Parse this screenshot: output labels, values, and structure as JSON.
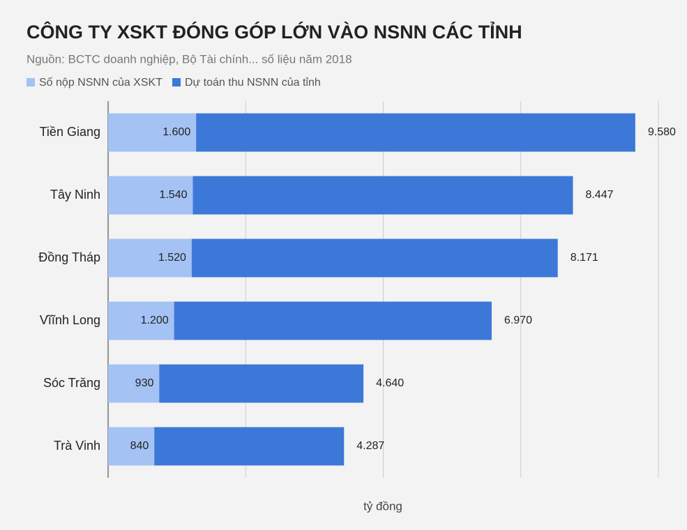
{
  "chart_data": {
    "type": "bar_overlap_horizontal",
    "title": "CÔNG TY XSKT ĐÓNG GÓP LỚN VÀO NSNN CÁC TỈNH",
    "subtitle": "Nguồn: BCTC doanh nghiệp, Bộ Tài chính... số liệu năm 2018",
    "x_label": "tỷ đồng",
    "categories": [
      "Tiền Giang",
      "Tây Ninh",
      "Đồng Tháp",
      "Vĩĩnh Long",
      "Sóc Trăng",
      "Trà Vinh"
    ],
    "series": [
      {
        "name": "Số nộp NSNN của XSKT",
        "color": "#a4c2f4",
        "values": [
          1600,
          1540,
          1520,
          1200,
          930,
          840
        ],
        "value_labels": [
          "1.600",
          "1.540",
          "1.520",
          "1.200",
          "930",
          "840"
        ]
      },
      {
        "name": "Dự toán thu NSNN của tỉnh",
        "color": "#3c78d8",
        "values": [
          9580,
          8447,
          8171,
          6970,
          4640,
          4287
        ],
        "value_labels": [
          "9.580",
          "8.447",
          "8.171",
          "6.970",
          "4.640",
          "4.287"
        ]
      }
    ],
    "xlim": [
      0,
      10000
    ],
    "xticks": [
      0,
      2500,
      5000,
      7500,
      10000
    ],
    "grid": true,
    "legend": "top-left"
  }
}
